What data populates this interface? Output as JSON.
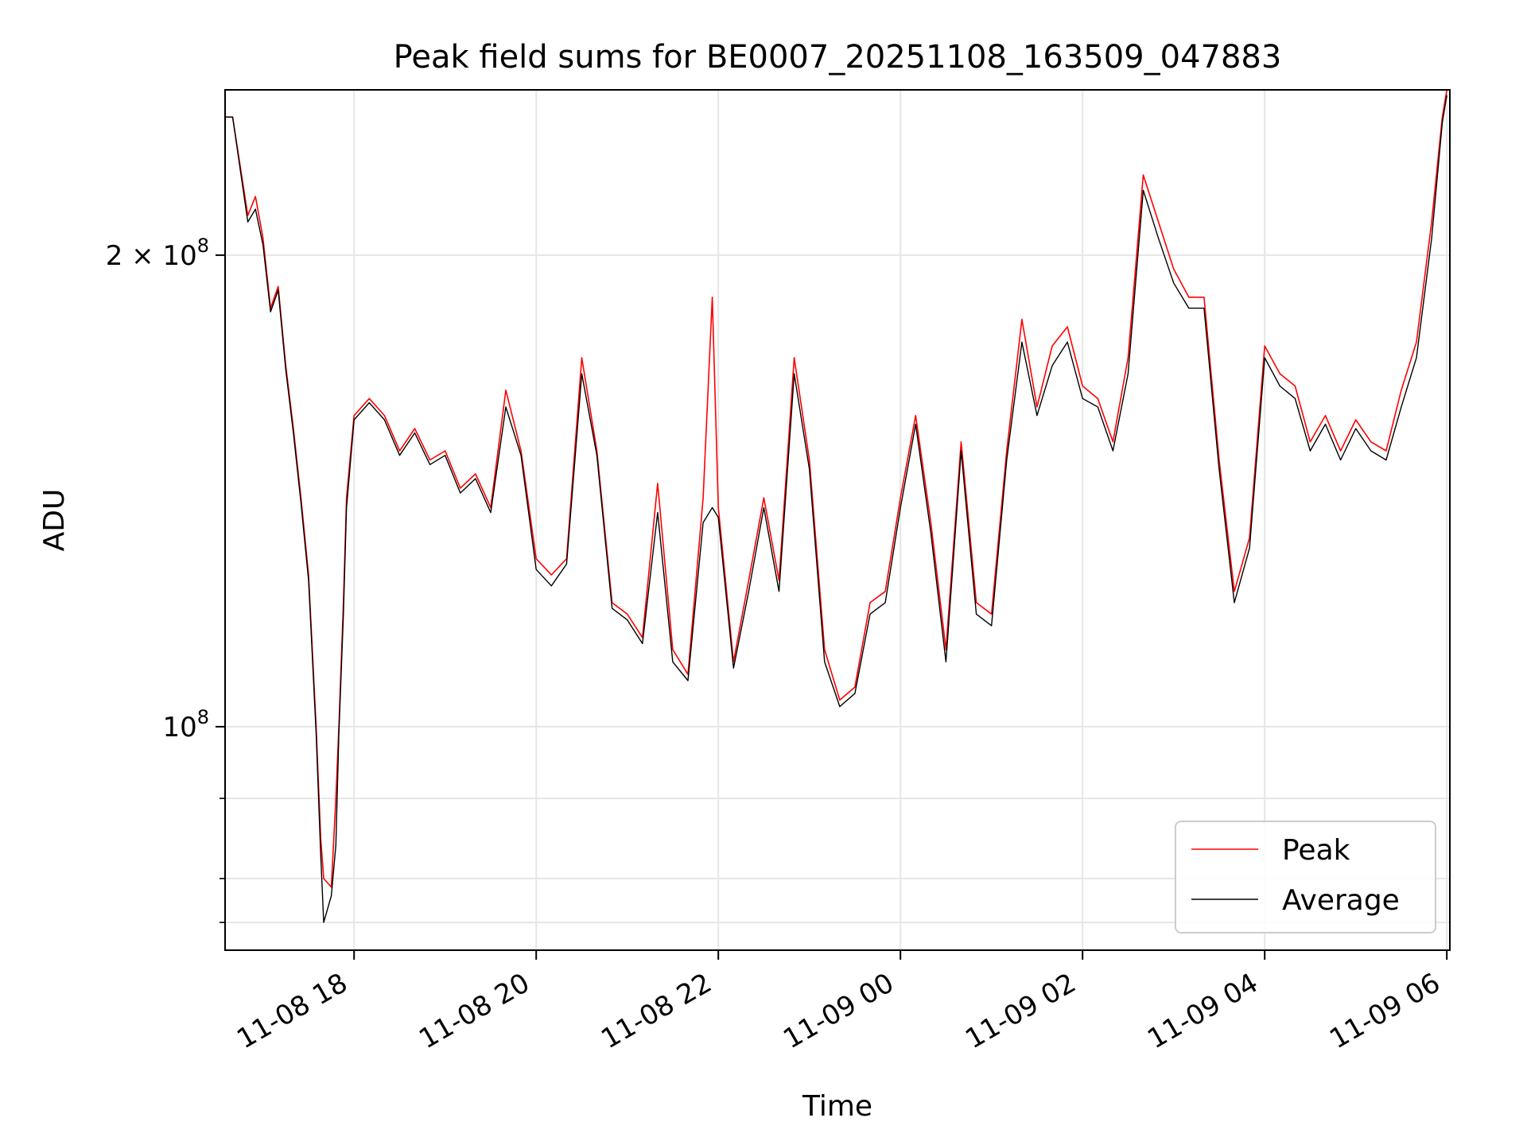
{
  "chart_data": {
    "type": "line",
    "title": "Peak field sums for BE0007_20251108_163509_047883",
    "xlabel": "Time",
    "ylabel": "ADU",
    "yscale": "log",
    "ylim": [
      72000000,
      255000000
    ],
    "xlim": [
      "2025-11-08 16:35",
      "2025-11-09 06:02"
    ],
    "x_ticks": [
      {
        "t": "2025-11-08 18:00",
        "label": "11-08 18"
      },
      {
        "t": "2025-11-08 20:00",
        "label": "11-08 20"
      },
      {
        "t": "2025-11-08 22:00",
        "label": "11-08 22"
      },
      {
        "t": "2025-11-09 00:00",
        "label": "11-09 00"
      },
      {
        "t": "2025-11-09 02:00",
        "label": "11-09 02"
      },
      {
        "t": "2025-11-09 04:00",
        "label": "11-09 04"
      },
      {
        "t": "2025-11-09 06:00",
        "label": "11-09 06"
      }
    ],
    "y_ticks_major": [
      {
        "value": 100000000,
        "base": "10",
        "exp": "8",
        "coef": ""
      },
      {
        "value": 200000000,
        "base": "10",
        "exp": "8",
        "coef": "2"
      }
    ],
    "y_ticks_minor": [
      75000000,
      80000000,
      90000000
    ],
    "grid": true,
    "legend": "lower-right",
    "series": [
      {
        "name": "Peak",
        "color": "#ff0000",
        "x": [
          "2025-11-08 16:35",
          "2025-11-08 16:40",
          "2025-11-08 16:50",
          "2025-11-08 16:55",
          "2025-11-08 17:00",
          "2025-11-08 17:05",
          "2025-11-08 17:10",
          "2025-11-08 17:15",
          "2025-11-08 17:20",
          "2025-11-08 17:25",
          "2025-11-08 17:30",
          "2025-11-08 17:35",
          "2025-11-08 17:38",
          "2025-11-08 17:40",
          "2025-11-08 17:45",
          "2025-11-08 17:48",
          "2025-11-08 17:50",
          "2025-11-08 17:53",
          "2025-11-08 17:55",
          "2025-11-08 18:00",
          "2025-11-08 18:10",
          "2025-11-08 18:20",
          "2025-11-08 18:30",
          "2025-11-08 18:40",
          "2025-11-08 18:50",
          "2025-11-08 19:00",
          "2025-11-08 19:10",
          "2025-11-08 19:20",
          "2025-11-08 19:30",
          "2025-11-08 19:40",
          "2025-11-08 19:50",
          "2025-11-08 20:00",
          "2025-11-08 20:10",
          "2025-11-08 20:20",
          "2025-11-08 20:30",
          "2025-11-08 20:40",
          "2025-11-08 20:50",
          "2025-11-08 21:00",
          "2025-11-08 21:10",
          "2025-11-08 21:20",
          "2025-11-08 21:30",
          "2025-11-08 21:40",
          "2025-11-08 21:50",
          "2025-11-08 21:56",
          "2025-11-08 22:00",
          "2025-11-08 22:10",
          "2025-11-08 22:20",
          "2025-11-08 22:30",
          "2025-11-08 22:40",
          "2025-11-08 22:50",
          "2025-11-08 23:00",
          "2025-11-08 23:10",
          "2025-11-08 23:20",
          "2025-11-08 23:30",
          "2025-11-08 23:40",
          "2025-11-08 23:50",
          "2025-11-09 00:00",
          "2025-11-09 00:10",
          "2025-11-09 00:20",
          "2025-11-09 00:30",
          "2025-11-09 00:40",
          "2025-11-09 00:50",
          "2025-11-09 01:00",
          "2025-11-09 01:10",
          "2025-11-09 01:20",
          "2025-11-09 01:30",
          "2025-11-09 01:40",
          "2025-11-09 01:50",
          "2025-11-09 02:00",
          "2025-11-09 02:10",
          "2025-11-09 02:20",
          "2025-11-09 02:30",
          "2025-11-09 02:40",
          "2025-11-09 02:50",
          "2025-11-09 03:00",
          "2025-11-09 03:10",
          "2025-11-09 03:20",
          "2025-11-09 03:30",
          "2025-11-09 03:40",
          "2025-11-09 03:50",
          "2025-11-09 04:00",
          "2025-11-09 04:10",
          "2025-11-09 04:20",
          "2025-11-09 04:30",
          "2025-11-09 04:40",
          "2025-11-09 04:50",
          "2025-11-09 05:00",
          "2025-11-09 05:10",
          "2025-11-09 05:20",
          "2025-11-09 05:30",
          "2025-11-09 05:40",
          "2025-11-09 05:50",
          "2025-11-09 05:57",
          "2025-11-09 06:00"
        ],
        "values": [
          245000000,
          245000000,
          212000000,
          218000000,
          205000000,
          185000000,
          191000000,
          170000000,
          155000000,
          140000000,
          125000000,
          100000000,
          85000000,
          80000000,
          79000000,
          90000000,
          100000000,
          120000000,
          140000000,
          158000000,
          162000000,
          158000000,
          150000000,
          155000000,
          148000000,
          150000000,
          142000000,
          145000000,
          138000000,
          164000000,
          150000000,
          128000000,
          125000000,
          128000000,
          172000000,
          150000000,
          120000000,
          118000000,
          114000000,
          143000000,
          112000000,
          108000000,
          140000000,
          188000000,
          138000000,
          110000000,
          124000000,
          140000000,
          124000000,
          172000000,
          148000000,
          112000000,
          104000000,
          106000000,
          120000000,
          122000000,
          140000000,
          158000000,
          135000000,
          112000000,
          152000000,
          120000000,
          118000000,
          150000000,
          182000000,
          160000000,
          175000000,
          180000000,
          165000000,
          162000000,
          152000000,
          172000000,
          225000000,
          210000000,
          196000000,
          188000000,
          188000000,
          148000000,
          122000000,
          132000000,
          175000000,
          168000000,
          165000000,
          152000000,
          158000000,
          150000000,
          157000000,
          152000000,
          150000000,
          164000000,
          176000000,
          210000000,
          245000000,
          255000000
        ]
      },
      {
        "name": "Average",
        "color": "#000000",
        "x": [
          "2025-11-08 16:35",
          "2025-11-08 16:40",
          "2025-11-08 16:50",
          "2025-11-08 16:55",
          "2025-11-08 17:00",
          "2025-11-08 17:05",
          "2025-11-08 17:10",
          "2025-11-08 17:15",
          "2025-11-08 17:20",
          "2025-11-08 17:25",
          "2025-11-08 17:30",
          "2025-11-08 17:35",
          "2025-11-08 17:38",
          "2025-11-08 17:40",
          "2025-11-08 17:45",
          "2025-11-08 17:48",
          "2025-11-08 17:50",
          "2025-11-08 17:53",
          "2025-11-08 17:55",
          "2025-11-08 18:00",
          "2025-11-08 18:10",
          "2025-11-08 18:20",
          "2025-11-08 18:30",
          "2025-11-08 18:40",
          "2025-11-08 18:50",
          "2025-11-08 19:00",
          "2025-11-08 19:10",
          "2025-11-08 19:20",
          "2025-11-08 19:30",
          "2025-11-08 19:40",
          "2025-11-08 19:50",
          "2025-11-08 20:00",
          "2025-11-08 20:10",
          "2025-11-08 20:20",
          "2025-11-08 20:30",
          "2025-11-08 20:40",
          "2025-11-08 20:50",
          "2025-11-08 21:00",
          "2025-11-08 21:10",
          "2025-11-08 21:20",
          "2025-11-08 21:30",
          "2025-11-08 21:40",
          "2025-11-08 21:50",
          "2025-11-08 21:56",
          "2025-11-08 22:00",
          "2025-11-08 22:10",
          "2025-11-08 22:20",
          "2025-11-08 22:30",
          "2025-11-08 22:40",
          "2025-11-08 22:50",
          "2025-11-08 23:00",
          "2025-11-08 23:10",
          "2025-11-08 23:20",
          "2025-11-08 23:30",
          "2025-11-08 23:40",
          "2025-11-08 23:50",
          "2025-11-09 00:00",
          "2025-11-09 00:10",
          "2025-11-09 00:20",
          "2025-11-09 00:30",
          "2025-11-09 00:40",
          "2025-11-09 00:50",
          "2025-11-09 01:00",
          "2025-11-09 01:10",
          "2025-11-09 01:20",
          "2025-11-09 01:30",
          "2025-11-09 01:40",
          "2025-11-09 01:50",
          "2025-11-09 02:00",
          "2025-11-09 02:10",
          "2025-11-09 02:20",
          "2025-11-09 02:30",
          "2025-11-09 02:40",
          "2025-11-09 02:50",
          "2025-11-09 03:00",
          "2025-11-09 03:10",
          "2025-11-09 03:20",
          "2025-11-09 03:30",
          "2025-11-09 03:40",
          "2025-11-09 03:50",
          "2025-11-09 04:00",
          "2025-11-09 04:10",
          "2025-11-09 04:20",
          "2025-11-09 04:30",
          "2025-11-09 04:40",
          "2025-11-09 04:50",
          "2025-11-09 05:00",
          "2025-11-09 05:10",
          "2025-11-09 05:20",
          "2025-11-09 05:30",
          "2025-11-09 05:40",
          "2025-11-09 05:50",
          "2025-11-09 05:57",
          "2025-11-09 06:00"
        ],
        "values": [
          245000000,
          245000000,
          210000000,
          214000000,
          203000000,
          184000000,
          190000000,
          169000000,
          154000000,
          139000000,
          124000000,
          99000000,
          83000000,
          75000000,
          78000000,
          84000000,
          99000000,
          118000000,
          138000000,
          157000000,
          161000000,
          157000000,
          149000000,
          154000000,
          147000000,
          149000000,
          141000000,
          144000000,
          137000000,
          160000000,
          149000000,
          126000000,
          123000000,
          127000000,
          168000000,
          149000000,
          119000000,
          117000000,
          113000000,
          137000000,
          110000000,
          107000000,
          135000000,
          138000000,
          136000000,
          109000000,
          122000000,
          138000000,
          122000000,
          168000000,
          146000000,
          110000000,
          103000000,
          105000000,
          118000000,
          120000000,
          138000000,
          156000000,
          133000000,
          110000000,
          150000000,
          118000000,
          116000000,
          148000000,
          176000000,
          158000000,
          170000000,
          176000000,
          162000000,
          160000000,
          150000000,
          168000000,
          220000000,
          205000000,
          192000000,
          185000000,
          185000000,
          146000000,
          120000000,
          130000000,
          172000000,
          165000000,
          162000000,
          150000000,
          156000000,
          148000000,
          155000000,
          150000000,
          148000000,
          160000000,
          172000000,
          205000000,
          243000000,
          253000000
        ]
      }
    ]
  }
}
